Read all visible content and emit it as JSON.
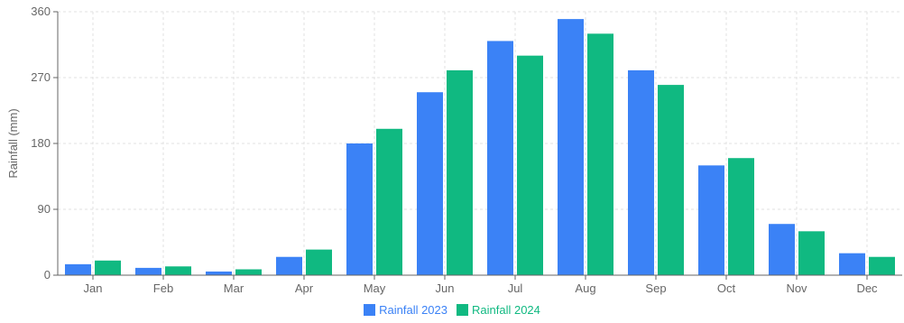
{
  "chart_data": {
    "type": "bar",
    "categories": [
      "Jan",
      "Feb",
      "Mar",
      "Apr",
      "May",
      "Jun",
      "Jul",
      "Aug",
      "Sep",
      "Oct",
      "Nov",
      "Dec"
    ],
    "series": [
      {
        "name": "Rainfall 2023",
        "color": "#3b82f6",
        "values": [
          15,
          10,
          5,
          25,
          180,
          250,
          320,
          350,
          280,
          150,
          70,
          30
        ]
      },
      {
        "name": "Rainfall 2024",
        "color": "#10b981",
        "values": [
          20,
          12,
          8,
          35,
          200,
          280,
          300,
          330,
          260,
          160,
          60,
          25
        ]
      }
    ],
    "ylabel": "Rainfall (mm)",
    "ylim": [
      0,
      360
    ],
    "yticks": [
      "0",
      "90",
      "180",
      "270",
      "360"
    ],
    "grid": true,
    "legend_position": "bottom"
  }
}
